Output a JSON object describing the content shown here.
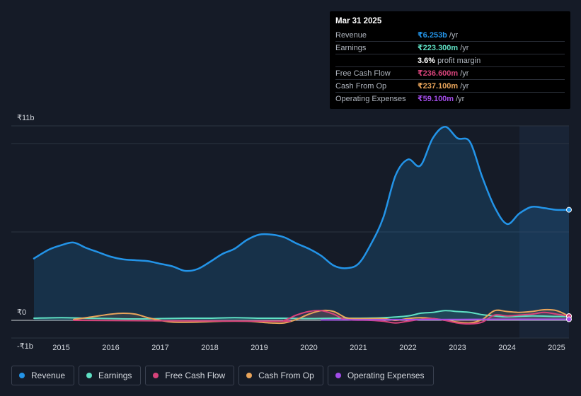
{
  "tooltip": {
    "date": "Mar 31 2025",
    "rows": [
      {
        "label": "Revenue",
        "value": "₹6.253b",
        "unit": "/yr",
        "color": "#2394e8"
      },
      {
        "label": "Earnings",
        "value": "₹223.300m",
        "unit": "/yr",
        "color": "#5fe0c4"
      },
      {
        "label": "",
        "value": "3.6%",
        "unit": "profit margin",
        "color": "#ffffff"
      },
      {
        "label": "Free Cash Flow",
        "value": "₹236.600m",
        "unit": "/yr",
        "color": "#d6437a"
      },
      {
        "label": "Cash From Op",
        "value": "₹237.100m",
        "unit": "/yr",
        "color": "#e8a45a"
      },
      {
        "label": "Operating Expenses",
        "value": "₹59.100m",
        "unit": "/yr",
        "color": "#a24ce8"
      }
    ]
  },
  "legend": [
    {
      "label": "Revenue",
      "color": "#2394e8"
    },
    {
      "label": "Earnings",
      "color": "#5fe0c4"
    },
    {
      "label": "Free Cash Flow",
      "color": "#d6437a"
    },
    {
      "label": "Cash From Op",
      "color": "#e8a45a"
    },
    {
      "label": "Operating Expenses",
      "color": "#a24ce8"
    }
  ],
  "chart_data": {
    "type": "line",
    "title": "",
    "xlabel": "",
    "ylabel": "",
    "ylim": [
      -1,
      11
    ],
    "y_tick_labels": [
      {
        "value": 11,
        "label": "₹11b"
      },
      {
        "value": 0,
        "label": "₹0"
      },
      {
        "value": -1,
        "label": "-₹1b"
      }
    ],
    "xlim": [
      2014.45,
      2025.25
    ],
    "x_tick_labels": [
      "2015",
      "2016",
      "2017",
      "2018",
      "2019",
      "2020",
      "2021",
      "2022",
      "2023",
      "2024",
      "2025"
    ],
    "x_tick_values": [
      2015,
      2016,
      2017,
      2018,
      2019,
      2020,
      2021,
      2022,
      2023,
      2024,
      2025
    ],
    "forecast_start": 2024.25,
    "series": [
      {
        "name": "Revenue",
        "color": "#2394e8",
        "area": true,
        "points": [
          [
            2014.45,
            3.5
          ],
          [
            2014.75,
            4.0
          ],
          [
            2015.0,
            4.25
          ],
          [
            2015.25,
            4.4
          ],
          [
            2015.5,
            4.1
          ],
          [
            2015.75,
            3.85
          ],
          [
            2016.0,
            3.6
          ],
          [
            2016.25,
            3.45
          ],
          [
            2016.5,
            3.4
          ],
          [
            2016.75,
            3.35
          ],
          [
            2017.0,
            3.2
          ],
          [
            2017.25,
            3.05
          ],
          [
            2017.5,
            2.8
          ],
          [
            2017.75,
            2.9
          ],
          [
            2018.0,
            3.3
          ],
          [
            2018.25,
            3.75
          ],
          [
            2018.5,
            4.05
          ],
          [
            2018.75,
            4.55
          ],
          [
            2019.0,
            4.85
          ],
          [
            2019.25,
            4.85
          ],
          [
            2019.5,
            4.7
          ],
          [
            2019.75,
            4.35
          ],
          [
            2020.0,
            4.05
          ],
          [
            2020.25,
            3.65
          ],
          [
            2020.5,
            3.1
          ],
          [
            2020.75,
            2.95
          ],
          [
            2021.0,
            3.2
          ],
          [
            2021.25,
            4.3
          ],
          [
            2021.5,
            5.8
          ],
          [
            2021.75,
            8.2
          ],
          [
            2022.0,
            9.1
          ],
          [
            2022.25,
            8.75
          ],
          [
            2022.5,
            10.3
          ],
          [
            2022.75,
            10.95
          ],
          [
            2023.0,
            10.3
          ],
          [
            2023.25,
            10.1
          ],
          [
            2023.5,
            8.1
          ],
          [
            2023.75,
            6.4
          ],
          [
            2024.0,
            5.45
          ],
          [
            2024.25,
            6.05
          ],
          [
            2024.5,
            6.42
          ],
          [
            2024.75,
            6.35
          ],
          [
            2025.0,
            6.25
          ],
          [
            2025.25,
            6.253
          ]
        ]
      },
      {
        "name": "Earnings",
        "color": "#5fe0c4",
        "area": true,
        "points": [
          [
            2014.45,
            0.12
          ],
          [
            2015.0,
            0.15
          ],
          [
            2015.5,
            0.12
          ],
          [
            2016.0,
            0.1
          ],
          [
            2016.5,
            0.08
          ],
          [
            2017.0,
            0.1
          ],
          [
            2017.5,
            0.12
          ],
          [
            2018.0,
            0.12
          ],
          [
            2018.5,
            0.15
          ],
          [
            2019.0,
            0.12
          ],
          [
            2019.5,
            0.12
          ],
          [
            2020.0,
            0.1
          ],
          [
            2020.5,
            0.12
          ],
          [
            2021.0,
            0.12
          ],
          [
            2021.5,
            0.15
          ],
          [
            2022.0,
            0.25
          ],
          [
            2022.25,
            0.4
          ],
          [
            2022.5,
            0.45
          ],
          [
            2022.75,
            0.55
          ],
          [
            2023.0,
            0.5
          ],
          [
            2023.25,
            0.45
          ],
          [
            2023.5,
            0.32
          ],
          [
            2023.75,
            0.25
          ],
          [
            2024.0,
            0.2
          ],
          [
            2024.5,
            0.25
          ],
          [
            2025.0,
            0.22
          ],
          [
            2025.25,
            0.2233
          ]
        ]
      },
      {
        "name": "Free Cash Flow",
        "color": "#d6437a",
        "area": true,
        "points": [
          [
            2015.25,
            0.0
          ],
          [
            2019.25,
            -0.05
          ],
          [
            2019.5,
            0.0
          ],
          [
            2019.75,
            0.3
          ],
          [
            2020.0,
            0.5
          ],
          [
            2020.25,
            0.55
          ],
          [
            2020.5,
            0.35
          ],
          [
            2020.75,
            0.05
          ],
          [
            2021.25,
            0.0
          ],
          [
            2021.5,
            -0.05
          ],
          [
            2021.75,
            -0.15
          ],
          [
            2022.0,
            -0.05
          ],
          [
            2022.25,
            0.05
          ],
          [
            2022.5,
            0.1
          ],
          [
            2022.75,
            0.0
          ],
          [
            2023.0,
            -0.15
          ],
          [
            2023.25,
            -0.2
          ],
          [
            2023.5,
            -0.1
          ],
          [
            2023.75,
            0.3
          ],
          [
            2024.0,
            0.25
          ],
          [
            2024.25,
            0.3
          ],
          [
            2024.5,
            0.35
          ],
          [
            2024.75,
            0.45
          ],
          [
            2025.0,
            0.35
          ],
          [
            2025.25,
            0.2366
          ]
        ]
      },
      {
        "name": "Cash From Op",
        "color": "#e8a45a",
        "area": true,
        "points": [
          [
            2015.25,
            0.05
          ],
          [
            2015.75,
            0.25
          ],
          [
            2016.0,
            0.35
          ],
          [
            2016.25,
            0.4
          ],
          [
            2016.5,
            0.35
          ],
          [
            2016.75,
            0.15
          ],
          [
            2017.0,
            0.0
          ],
          [
            2017.25,
            -0.1
          ],
          [
            2017.75,
            -0.1
          ],
          [
            2018.25,
            -0.05
          ],
          [
            2018.75,
            -0.05
          ],
          [
            2019.0,
            -0.1
          ],
          [
            2019.25,
            -0.15
          ],
          [
            2019.5,
            -0.15
          ],
          [
            2019.75,
            0.05
          ],
          [
            2020.0,
            0.35
          ],
          [
            2020.25,
            0.55
          ],
          [
            2020.5,
            0.5
          ],
          [
            2020.75,
            0.15
          ],
          [
            2021.0,
            0.1
          ],
          [
            2021.5,
            0.1
          ],
          [
            2021.75,
            0.0
          ],
          [
            2022.0,
            0.1
          ],
          [
            2022.25,
            0.15
          ],
          [
            2022.5,
            0.1
          ],
          [
            2022.75,
            0.0
          ],
          [
            2023.0,
            -0.1
          ],
          [
            2023.25,
            -0.15
          ],
          [
            2023.5,
            0.05
          ],
          [
            2023.75,
            0.55
          ],
          [
            2024.0,
            0.5
          ],
          [
            2024.25,
            0.45
          ],
          [
            2024.5,
            0.5
          ],
          [
            2024.75,
            0.6
          ],
          [
            2025.0,
            0.55
          ],
          [
            2025.25,
            0.2371
          ]
        ]
      },
      {
        "name": "Operating Expenses",
        "color": "#a24ce8",
        "area": false,
        "points": [
          [
            2020.25,
            0.02
          ],
          [
            2021.0,
            0.03
          ],
          [
            2022.0,
            0.04
          ],
          [
            2023.0,
            0.05
          ],
          [
            2024.0,
            0.06
          ],
          [
            2025.25,
            0.0591
          ]
        ]
      }
    ]
  }
}
